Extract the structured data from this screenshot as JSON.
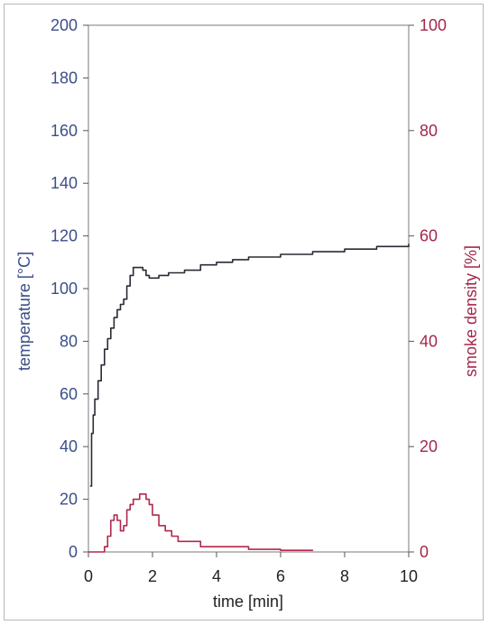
{
  "chart_data": {
    "type": "line",
    "xlabel": "time [min]",
    "ylabel_left": "temperature [°C]",
    "ylabel_right": "smoke density [%]",
    "xlim": [
      0,
      10
    ],
    "ylim_left": [
      0,
      200
    ],
    "ylim_right": [
      0,
      100
    ],
    "x_ticks": [
      0,
      2,
      4,
      6,
      8,
      10
    ],
    "y_left_ticks": [
      0,
      20,
      40,
      60,
      80,
      100,
      120,
      140,
      160,
      180,
      200
    ],
    "y_right_ticks": [
      0,
      20,
      40,
      60,
      80,
      100
    ],
    "grid": false,
    "colors": {
      "left_axis": "#3b4f8a",
      "right_axis": "#a3284b",
      "temperature": "#2a2a35",
      "smoke": "#b0284c"
    },
    "series": [
      {
        "axis": "left",
        "x": [
          0.05,
          0.1,
          0.15,
          0.2,
          0.3,
          0.4,
          0.5,
          0.6,
          0.7,
          0.8,
          0.9,
          1.0,
          1.1,
          1.2,
          1.3,
          1.4,
          1.5,
          1.6,
          1.7,
          1.8,
          1.9,
          2.0,
          2.2,
          2.5,
          3.0,
          3.5,
          4.0,
          4.5,
          5.0,
          5.5,
          6.0,
          6.5,
          7.0,
          7.5,
          8.0,
          8.5,
          9.0,
          9.5,
          10.0
        ],
        "y": [
          25,
          45,
          52,
          58,
          65,
          71,
          77,
          81,
          85,
          89,
          92,
          94,
          96,
          101,
          105,
          108,
          108,
          108,
          107,
          105,
          104,
          104,
          105,
          106,
          107,
          109,
          110,
          111,
          112,
          112,
          113,
          113,
          114,
          114,
          115,
          115,
          116,
          116,
          117
        ]
      },
      {
        "axis": "right",
        "x": [
          0.0,
          0.4,
          0.5,
          0.6,
          0.7,
          0.8,
          0.9,
          1.0,
          1.1,
          1.2,
          1.3,
          1.4,
          1.5,
          1.6,
          1.7,
          1.8,
          1.9,
          2.0,
          2.2,
          2.4,
          2.6,
          2.8,
          3.0,
          3.5,
          4.0,
          5.0,
          6.0,
          7.0
        ],
        "y": [
          0,
          0,
          1,
          3,
          6,
          7,
          6,
          4,
          5,
          8,
          9,
          10,
          10,
          11,
          11,
          10,
          9,
          7,
          5,
          4,
          3,
          2,
          2,
          1,
          1,
          0.5,
          0.3,
          0.2
        ]
      }
    ]
  }
}
